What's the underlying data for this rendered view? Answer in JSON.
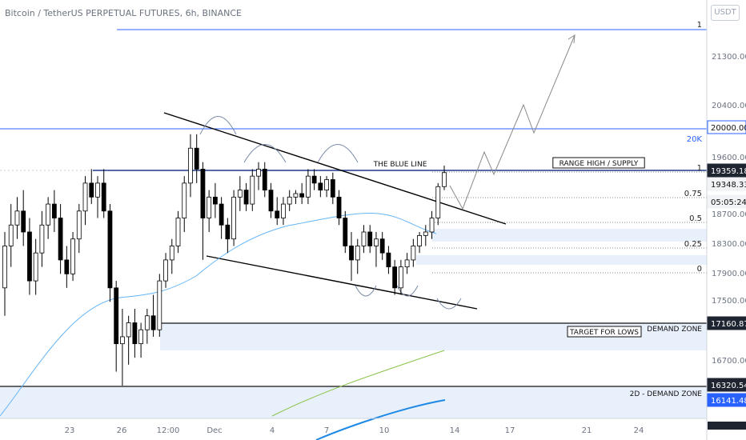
{
  "title": "Bitcoin / TetherUS PERPETUAL FUTURES, 6h, BINANCE",
  "currency_button": "USDT",
  "colors": {
    "up": "#ffffff",
    "down": "#000000",
    "level_blue": "#2962ff",
    "zone_fill": "#e8f0fc",
    "ma_light": "#64b5f6",
    "ma_green": "#8bc34a",
    "ma_dark": "#1e88e5"
  },
  "chart_data": {
    "type": "candlestick",
    "title": "Bitcoin / TetherUS PERPETUAL FUTURES, 6h, BINANCE",
    "y_ticks": [
      "21300.00",
      "20400.00",
      "19600.00",
      "18700.00",
      "18300.00",
      "17900.00",
      "17500.00",
      "16700.00"
    ],
    "x_ticks": [
      "23",
      "26",
      "12:00",
      "Dec",
      "4",
      "7",
      "10",
      "14",
      "17",
      "21",
      "24"
    ],
    "price_tags": [
      {
        "text": "20000.00",
        "style": "blue_outline"
      },
      {
        "text": "19359.18",
        "style": "dark"
      },
      {
        "text": "19348.33",
        "style": "light"
      },
      {
        "text": "05:05:24",
        "style": "light"
      },
      {
        "text": "17160.87",
        "style": "dark"
      },
      {
        "text": "16320.54",
        "style": "dark"
      },
      {
        "text": "16141.48",
        "style": "blue"
      }
    ],
    "fib_levels": [
      {
        "label": "1",
        "price": 19359
      },
      {
        "label": "0.75",
        "price": 19000
      },
      {
        "label": "0.5",
        "price": 18640
      },
      {
        "label": "0.25",
        "price": 18280
      },
      {
        "label": "0",
        "price": 17920
      }
    ],
    "top_level": {
      "label": "1",
      "price": 21900
    },
    "level_20k": {
      "label": "20K",
      "price": 20000
    },
    "annotations": [
      "THE BLUE LINE",
      "RANGE HIGH / SUPPLY",
      "TARGET FOR LOWS",
      "DEMAND ZONE",
      "2D - DEMAND ZONE"
    ],
    "candles": [
      {
        "o": 17700,
        "h": 18500,
        "l": 17300,
        "c": 18300
      },
      {
        "o": 18300,
        "h": 18900,
        "l": 18000,
        "c": 18600
      },
      {
        "o": 18600,
        "h": 19000,
        "l": 18400,
        "c": 18800
      },
      {
        "o": 18800,
        "h": 19100,
        "l": 18300,
        "c": 18500
      },
      {
        "o": 18500,
        "h": 18700,
        "l": 17600,
        "c": 17800
      },
      {
        "o": 17800,
        "h": 18400,
        "l": 17600,
        "c": 18200
      },
      {
        "o": 18200,
        "h": 18800,
        "l": 18000,
        "c": 18600
      },
      {
        "o": 18600,
        "h": 19000,
        "l": 18400,
        "c": 18900
      },
      {
        "o": 18900,
        "h": 19100,
        "l": 18500,
        "c": 18700
      },
      {
        "o": 18700,
        "h": 18900,
        "l": 17900,
        "c": 18100
      },
      {
        "o": 18100,
        "h": 18300,
        "l": 17700,
        "c": 17900
      },
      {
        "o": 17900,
        "h": 18500,
        "l": 17800,
        "c": 18400
      },
      {
        "o": 18400,
        "h": 18900,
        "l": 18200,
        "c": 18800
      },
      {
        "o": 18800,
        "h": 19300,
        "l": 18600,
        "c": 19200
      },
      {
        "o": 19200,
        "h": 19400,
        "l": 18900,
        "c": 19000
      },
      {
        "o": 19000,
        "h": 19300,
        "l": 18700,
        "c": 19200
      },
      {
        "o": 19200,
        "h": 19400,
        "l": 18700,
        "c": 18800
      },
      {
        "o": 18800,
        "h": 18900,
        "l": 17500,
        "c": 17700
      },
      {
        "o": 17700,
        "h": 17800,
        "l": 16500,
        "c": 16900
      },
      {
        "o": 16900,
        "h": 17400,
        "l": 16300,
        "c": 17000
      },
      {
        "o": 17000,
        "h": 17300,
        "l": 16600,
        "c": 17200
      },
      {
        "o": 17200,
        "h": 17400,
        "l": 16700,
        "c": 16900
      },
      {
        "o": 16900,
        "h": 17200,
        "l": 16700,
        "c": 17100
      },
      {
        "o": 17100,
        "h": 17400,
        "l": 16900,
        "c": 17300
      },
      {
        "o": 17300,
        "h": 17600,
        "l": 17000,
        "c": 17100
      },
      {
        "o": 17100,
        "h": 17900,
        "l": 17000,
        "c": 17800
      },
      {
        "o": 17800,
        "h": 18200,
        "l": 17700,
        "c": 18100
      },
      {
        "o": 18100,
        "h": 18400,
        "l": 17900,
        "c": 18300
      },
      {
        "o": 18300,
        "h": 18800,
        "l": 18200,
        "c": 18700
      },
      {
        "o": 18700,
        "h": 19300,
        "l": 18500,
        "c": 19200
      },
      {
        "o": 19200,
        "h": 19900,
        "l": 19000,
        "c": 19700
      },
      {
        "o": 19700,
        "h": 19900,
        "l": 19200,
        "c": 19400
      },
      {
        "o": 19400,
        "h": 19500,
        "l": 18100,
        "c": 18700
      },
      {
        "o": 18700,
        "h": 19100,
        "l": 18500,
        "c": 19000
      },
      {
        "o": 19000,
        "h": 19200,
        "l": 18700,
        "c": 18900
      },
      {
        "o": 18900,
        "h": 19000,
        "l": 18400,
        "c": 18600
      },
      {
        "o": 18600,
        "h": 18700,
        "l": 18200,
        "c": 18400
      },
      {
        "o": 18400,
        "h": 19100,
        "l": 18300,
        "c": 19000
      },
      {
        "o": 19000,
        "h": 19300,
        "l": 18800,
        "c": 19100
      },
      {
        "o": 19100,
        "h": 19200,
        "l": 18800,
        "c": 18900
      },
      {
        "o": 18900,
        "h": 19400,
        "l": 18800,
        "c": 19300
      },
      {
        "o": 19300,
        "h": 19500,
        "l": 19100,
        "c": 19400
      },
      {
        "o": 19400,
        "h": 19500,
        "l": 19000,
        "c": 19100
      },
      {
        "o": 19100,
        "h": 19200,
        "l": 18700,
        "c": 18800
      },
      {
        "o": 18800,
        "h": 19000,
        "l": 18600,
        "c": 18700
      },
      {
        "o": 18700,
        "h": 19000,
        "l": 18600,
        "c": 18900
      },
      {
        "o": 18900,
        "h": 19100,
        "l": 18800,
        "c": 19000
      },
      {
        "o": 19000,
        "h": 19100,
        "l": 18900,
        "c": 19050
      },
      {
        "o": 19050,
        "h": 19200,
        "l": 18900,
        "c": 19000
      },
      {
        "o": 19000,
        "h": 19400,
        "l": 18900,
        "c": 19300
      },
      {
        "o": 19300,
        "h": 19400,
        "l": 19100,
        "c": 19200
      },
      {
        "o": 19200,
        "h": 19300,
        "l": 19000,
        "c": 19100
      },
      {
        "o": 19100,
        "h": 19300,
        "l": 19000,
        "c": 19250
      },
      {
        "o": 19250,
        "h": 19350,
        "l": 18900,
        "c": 19000
      },
      {
        "o": 19000,
        "h": 19100,
        "l": 18600,
        "c": 18700
      },
      {
        "o": 18700,
        "h": 18800,
        "l": 18200,
        "c": 18300
      },
      {
        "o": 18300,
        "h": 18500,
        "l": 17800,
        "c": 18100
      },
      {
        "o": 18100,
        "h": 18400,
        "l": 17900,
        "c": 18300
      },
      {
        "o": 18300,
        "h": 18600,
        "l": 18200,
        "c": 18500
      },
      {
        "o": 18500,
        "h": 18600,
        "l": 18200,
        "c": 18300
      },
      {
        "o": 18300,
        "h": 18500,
        "l": 18000,
        "c": 18400
      },
      {
        "o": 18400,
        "h": 18500,
        "l": 18100,
        "c": 18200
      },
      {
        "o": 18200,
        "h": 18300,
        "l": 17900,
        "c": 18000
      },
      {
        "o": 18000,
        "h": 18100,
        "l": 17600,
        "c": 17700
      },
      {
        "o": 17700,
        "h": 18100,
        "l": 17600,
        "c": 18000
      },
      {
        "o": 18000,
        "h": 18200,
        "l": 17900,
        "c": 18100
      },
      {
        "o": 18100,
        "h": 18400,
        "l": 18000,
        "c": 18300
      },
      {
        "o": 18300,
        "h": 18500,
        "l": 18200,
        "c": 18450
      },
      {
        "o": 18450,
        "h": 18600,
        "l": 18300,
        "c": 18500
      },
      {
        "o": 18500,
        "h": 18800,
        "l": 18400,
        "c": 18700
      },
      {
        "o": 18700,
        "h": 19200,
        "l": 18600,
        "c": 19150
      },
      {
        "o": 19150,
        "h": 19450,
        "l": 19100,
        "c": 19350
      }
    ]
  }
}
